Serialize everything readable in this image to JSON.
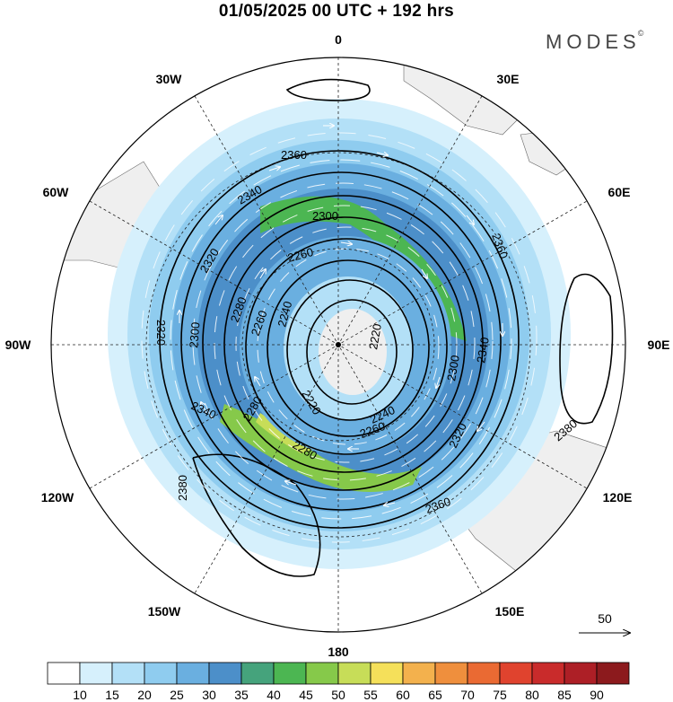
{
  "title": "01/05/2025  00 UTC  + 192 hrs",
  "brand": "MODES",
  "brand_mark": "©",
  "lon_labels": [
    {
      "text": "0",
      "deg": 0
    },
    {
      "text": "30E",
      "deg": 30
    },
    {
      "text": "60E",
      "deg": 60
    },
    {
      "text": "90E",
      "deg": 90
    },
    {
      "text": "120E",
      "deg": 120
    },
    {
      "text": "150E",
      "deg": 150
    },
    {
      "text": "180",
      "deg": 180
    },
    {
      "text": "150W",
      "deg": 210
    },
    {
      "text": "120W",
      "deg": 240
    },
    {
      "text": "90W",
      "deg": 270
    },
    {
      "text": "60W",
      "deg": 300
    },
    {
      "text": "30W",
      "deg": 330
    }
  ],
  "contour_labels": [
    "2360",
    "2340",
    "2320",
    "2300",
    "2280",
    "2260",
    "2240",
    "2220",
    "2360",
    "2340",
    "2320",
    "2300",
    "2280",
    "2260",
    "2240",
    "2220",
    "2380",
    "2380",
    "2360",
    "2340",
    "2320",
    "2300",
    "2280",
    "2260"
  ],
  "vector_reference": "50",
  "colorbar": {
    "ticks": [
      "10",
      "15",
      "20",
      "25",
      "30",
      "35",
      "40",
      "45",
      "50",
      "55",
      "60",
      "65",
      "70",
      "75",
      "80",
      "85",
      "90"
    ],
    "colors": [
      "#ffffff",
      "#d6f0fc",
      "#b3e0f7",
      "#8fccef",
      "#6aafe0",
      "#4c8fc9",
      "#45a37c",
      "#4cb652",
      "#86c94a",
      "#c7dd58",
      "#f5e05a",
      "#f3b14d",
      "#ef8f3d",
      "#ea6a33",
      "#e0432e",
      "#c92b2b",
      "#ad1f26",
      "#8c1a1d"
    ]
  }
}
